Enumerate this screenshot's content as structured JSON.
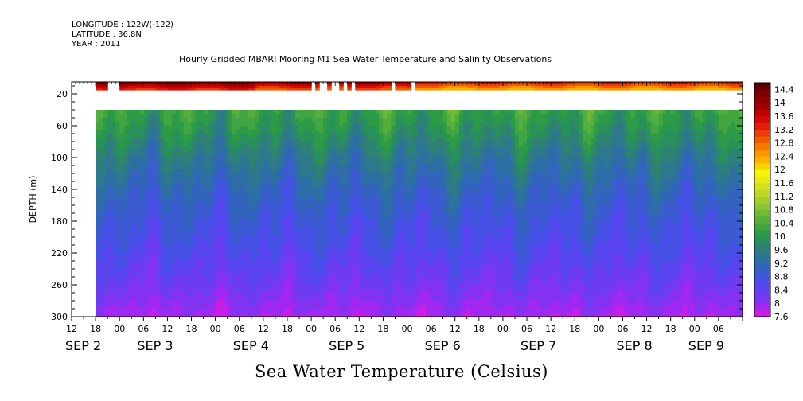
{
  "header": {
    "longitude": "LONGITUDE : 122W(-122)",
    "latitude": "LATITUDE : 36.8N",
    "year": "YEAR : 2011"
  },
  "title": "Hourly Gridded MBARI Mooring M1 Sea Water Temperature and Salinity Observations",
  "footer_title": "Sea Water Temperature (Celsius)",
  "chart_data": {
    "type": "heatmap",
    "title": "Hourly Gridded MBARI Mooring M1 Sea Water Temperature and Salinity Observations",
    "xlabel": "",
    "ylabel": "DEPTH (m)",
    "x_start_hours": -6,
    "x_end_hours": 162,
    "y_range": [
      5,
      300
    ],
    "y_ticks": [
      20,
      60,
      100,
      140,
      180,
      220,
      260,
      300
    ],
    "y_tick_labels": [
      "20",
      "60",
      "100",
      "140",
      "180",
      "220",
      "260",
      "300"
    ],
    "x_ticks": [
      {
        "h": -6,
        "label": "12"
      },
      {
        "h": 0,
        "label": "18"
      },
      {
        "h": 6,
        "label": "00"
      },
      {
        "h": 12,
        "label": "06"
      },
      {
        "h": 18,
        "label": "12"
      },
      {
        "h": 24,
        "label": "18"
      },
      {
        "h": 30,
        "label": "00"
      },
      {
        "h": 36,
        "label": "06"
      },
      {
        "h": 42,
        "label": "12"
      },
      {
        "h": 48,
        "label": "18"
      },
      {
        "h": 54,
        "label": "00"
      },
      {
        "h": 60,
        "label": "06"
      },
      {
        "h": 66,
        "label": "12"
      },
      {
        "h": 72,
        "label": "18"
      },
      {
        "h": 78,
        "label": "00"
      },
      {
        "h": 84,
        "label": "06"
      },
      {
        "h": 90,
        "label": "12"
      },
      {
        "h": 96,
        "label": "18"
      },
      {
        "h": 102,
        "label": "00"
      },
      {
        "h": 108,
        "label": "06"
      },
      {
        "h": 114,
        "label": "12"
      },
      {
        "h": 120,
        "label": "18"
      },
      {
        "h": 126,
        "label": "00"
      },
      {
        "h": 132,
        "label": "06"
      },
      {
        "h": 138,
        "label": "12"
      },
      {
        "h": 144,
        "label": "18"
      },
      {
        "h": 150,
        "label": "00"
      },
      {
        "h": 156,
        "label": "06"
      }
    ],
    "date_labels": [
      {
        "h": -6,
        "label": "SEP  2"
      },
      {
        "h": 12,
        "label": "SEP  3"
      },
      {
        "h": 36,
        "label": "SEP  4"
      },
      {
        "h": 60,
        "label": "SEP  5"
      },
      {
        "h": 84,
        "label": "SEP  6"
      },
      {
        "h": 108,
        "label": "SEP  7"
      },
      {
        "h": 132,
        "label": "SEP  8"
      },
      {
        "h": 150,
        "label": "SEP  9"
      }
    ],
    "data_start_hours": 0,
    "surface_depth_range": [
      5,
      15
    ],
    "deep_start_depth": 40,
    "surface_gaps_hours": [
      [
        3,
        6
      ],
      [
        54,
        55
      ],
      [
        56,
        58
      ],
      [
        59,
        60
      ],
      [
        60,
        61
      ],
      [
        62,
        63
      ],
      [
        64,
        65
      ],
      [
        74,
        75
      ],
      [
        79,
        80
      ]
    ],
    "profile_depths": [
      40,
      60,
      80,
      100,
      120,
      140,
      160,
      180,
      200,
      220,
      240,
      260,
      280,
      300
    ],
    "profile_temps": [
      10.2,
      10.0,
      9.75,
      9.5,
      9.3,
      9.1,
      8.95,
      8.8,
      8.7,
      8.55,
      8.4,
      8.25,
      8.05,
      7.85
    ],
    "colorbar": {
      "levels": [
        7.6,
        7.8,
        8,
        8.2,
        8.4,
        8.6,
        8.8,
        9,
        9.2,
        9.4,
        9.6,
        9.8,
        10,
        10.2,
        10.4,
        10.6,
        10.8,
        11,
        11.2,
        11.4,
        11.6,
        11.8,
        12,
        12.2,
        12.4,
        12.6,
        12.8,
        13,
        13.2,
        13.4,
        13.6,
        13.8,
        14,
        14.2,
        14.4,
        14.6
      ],
      "labels": [
        "7.6",
        "8",
        "8.4",
        "8.8",
        "9.2",
        "9.6",
        "10",
        "10.4",
        "10.8",
        "11.2",
        "11.6",
        "12",
        "12.4",
        "12.8",
        "13.2",
        "13.6",
        "14",
        "14.4"
      ],
      "colors": [
        "#c81ee6",
        "#a028f0",
        "#8232f0",
        "#6e3cf0",
        "#5a46f0",
        "#4650e6",
        "#3c5ad2",
        "#3264be",
        "#2d6ea5",
        "#2d788c",
        "#2d8273",
        "#28915a",
        "#2d9b46",
        "#41a541",
        "#55af3c",
        "#6eb937",
        "#8cc332",
        "#a5cd2d",
        "#bed728",
        "#d2e11e",
        "#e6eb14",
        "#f5f50a",
        "#fad200",
        "#fab400",
        "#fa9600",
        "#f57800",
        "#f05a00",
        "#eb3c0a",
        "#e11e0a",
        "#d20a0a",
        "#be0000",
        "#a00000",
        "#8c0000",
        "#7a0000",
        "#5f0000"
      ]
    }
  }
}
